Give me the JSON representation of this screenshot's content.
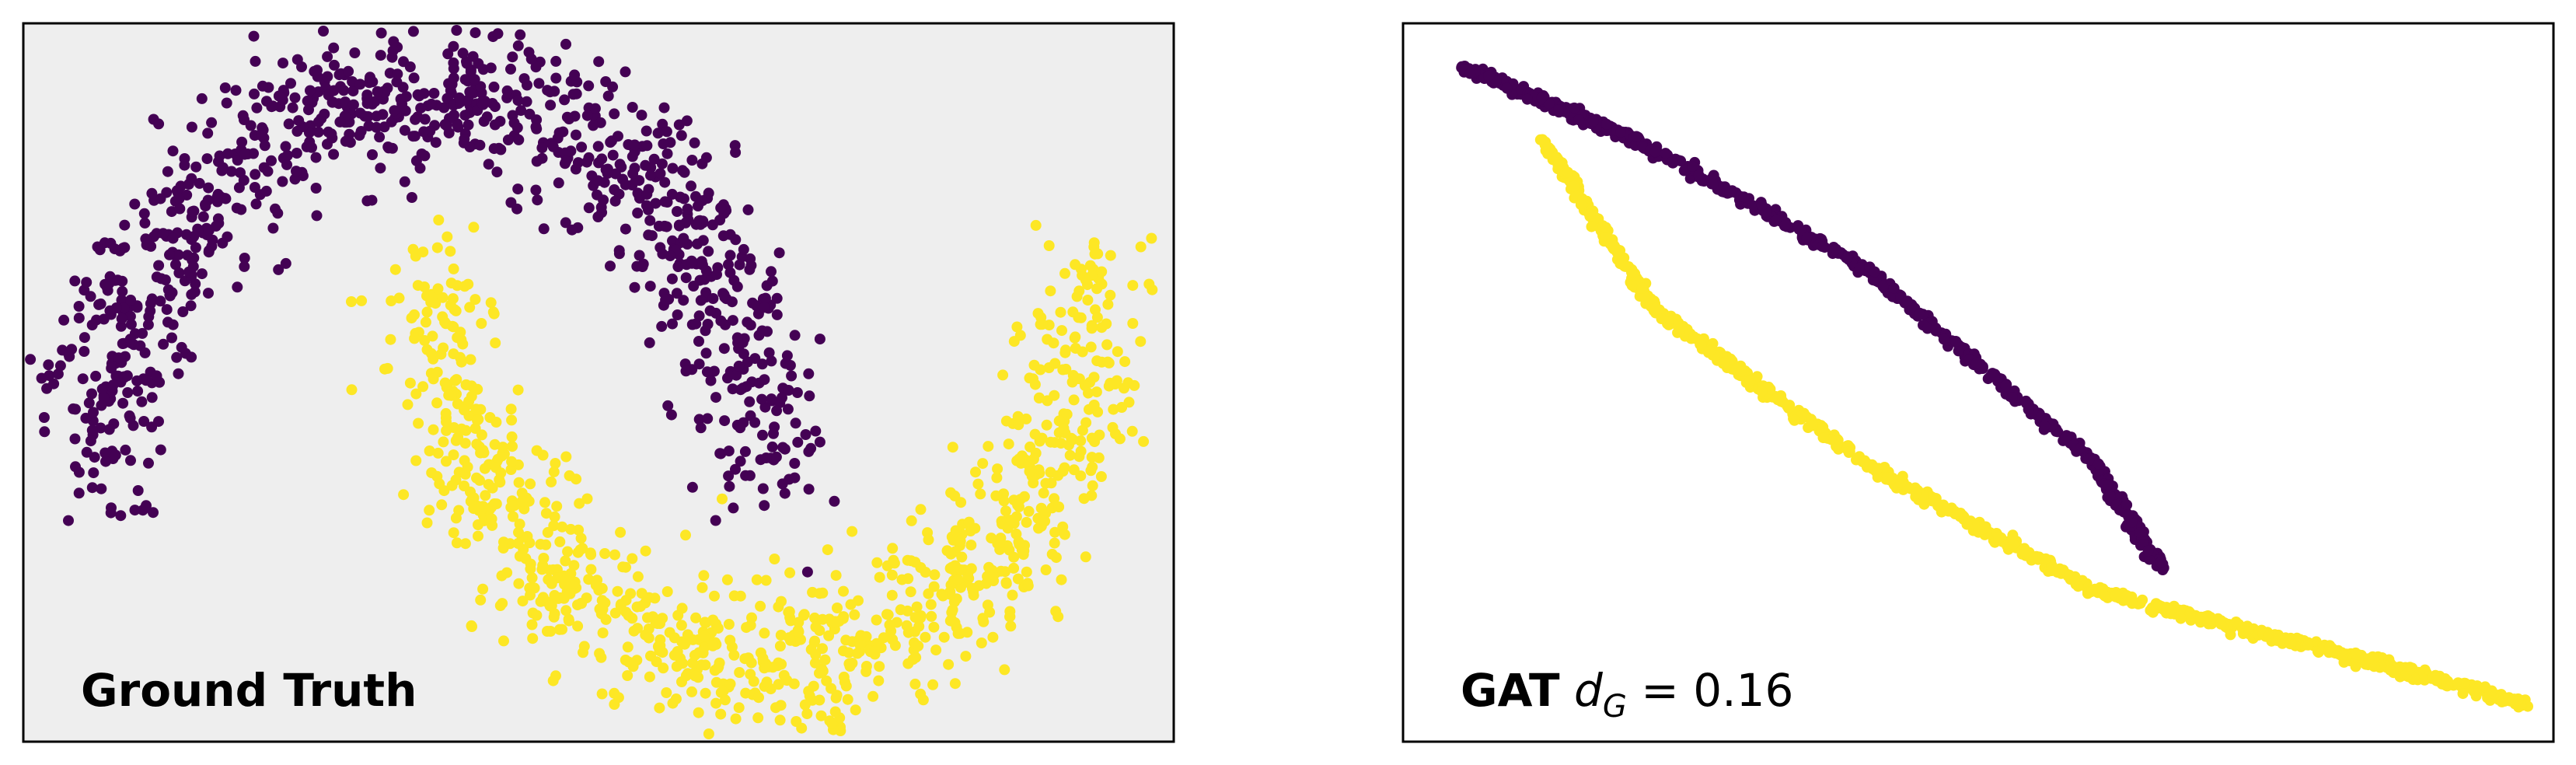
{
  "colors": {
    "class0": "#440154",
    "class1": "#fde725",
    "panel_bg_left": "#eeeeee",
    "panel_bg_right": "#ffffff"
  },
  "chart_data": [
    {
      "type": "scatter",
      "title": "",
      "annotation": "Ground Truth",
      "axes": "hidden",
      "grid": false,
      "xlim": [
        -1.25,
        2.25
      ],
      "ylim": [
        -0.72,
        1.18
      ],
      "series": [
        {
          "class": 0,
          "shape": "upper moon",
          "center": [
            0.0,
            0.0
          ],
          "radius": 1.0,
          "noise": 0.1,
          "n": 1000
        },
        {
          "class": 1,
          "shape": "lower moon",
          "center": [
            1.0,
            0.5
          ],
          "radius": 1.0,
          "noise": 0.1,
          "n": 1000
        }
      ]
    },
    {
      "type": "scatter",
      "title": "",
      "annotation_bold": "GAT",
      "annotation_symbol": "d",
      "annotation_sub": "G",
      "annotation_value": " = 0.16",
      "axes": "hidden",
      "grid": false,
      "xlim": [
        0.0,
        1.0
      ],
      "ylim": [
        0.0,
        1.0
      ],
      "series": [
        {
          "class": 0,
          "path": [
            [
              0.05,
              0.94
            ],
            [
              0.2,
              0.84
            ],
            [
              0.4,
              0.66
            ],
            [
              0.6,
              0.39
            ],
            [
              0.66,
              0.24
            ]
          ]
        },
        {
          "class": 1,
          "path": [
            [
              0.12,
              0.84
            ],
            [
              0.22,
              0.6
            ],
            [
              0.4,
              0.39
            ],
            [
              0.6,
              0.21
            ],
            [
              0.8,
              0.13
            ],
            [
              0.98,
              0.05
            ]
          ]
        }
      ]
    }
  ]
}
